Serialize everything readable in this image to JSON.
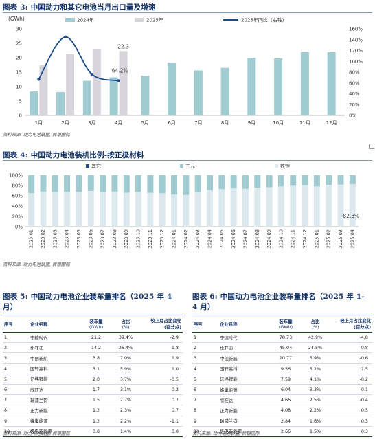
{
  "figure3": {
    "title": "图表 3: 中国动力和其它电池当月出口量及增速",
    "source": "资料来源: 动力电池联盟, 民银国际",
    "chart_data": {
      "type": "bar",
      "ylabel": "(GWh)",
      "ylim": [
        0,
        30
      ],
      "y2lim": [
        0,
        160
      ],
      "yticks": [
        "0",
        "5",
        "10",
        "15",
        "20",
        "25",
        "30"
      ],
      "y2ticks": [
        "0%",
        "20%",
        "40%",
        "60%",
        "80%",
        "100%",
        "120%",
        "140%",
        "160%"
      ],
      "categories": [
        "1月",
        "2月",
        "3月",
        "4月",
        "5月",
        "6月",
        "7月",
        "8月",
        "9月",
        "10月",
        "11月",
        "12月"
      ],
      "series": [
        {
          "name": "2024年",
          "color": "#9fcbd1",
          "values": [
            8.3,
            8.1,
            12.0,
            13.2,
            13.8,
            18.3,
            15.6,
            16.5,
            20.0,
            19.8,
            21.9,
            21.9
          ]
        },
        {
          "name": "2025年",
          "color": "#d7d4dc",
          "values": [
            17.4,
            21.2,
            22.9,
            22.3,
            null,
            null,
            null,
            null,
            null,
            null,
            null,
            null
          ]
        },
        {
          "name": "2025年同比（右轴）",
          "color": "#1c4c87",
          "axis": "right",
          "values": [
            67,
            145,
            76,
            64.2,
            null,
            null,
            null,
            null,
            null,
            null,
            null,
            null
          ]
        }
      ],
      "annotations": [
        "22.3",
        "64.2%"
      ]
    }
  },
  "figure4": {
    "title": "图表 4: 中国动力电池装机比例-按正极材料",
    "source": "资料来源: 动力电池联盟, 民银国际",
    "chart_data": {
      "type": "bar",
      "stacked": true,
      "yticks": [
        "0%",
        "20%",
        "40%",
        "60%",
        "80%",
        "100%"
      ],
      "categories": [
        "2023.01",
        "2023.02",
        "2023.03",
        "2023.04",
        "2023.05",
        "2023.06",
        "2023.07",
        "2023.08",
        "2023.09",
        "2023.10",
        "2023.11",
        "2023.12",
        "2024.01",
        "2024.02",
        "2024.03",
        "2024.04",
        "2024.05",
        "2024.06",
        "2024.07",
        "2024.08",
        "2024.09",
        "2024.10",
        "2024.11",
        "2024.12",
        "2025.01",
        "2025.02",
        "2025.03",
        "2025.04"
      ],
      "series": [
        {
          "name": "铁锂",
          "color": "#dbe9ee",
          "values": [
            65.4,
            68.2,
            67.1,
            67.6,
            67.8,
            69.4,
            66.8,
            68.3,
            65.9,
            67.7,
            65.7,
            64.9,
            62.3,
            61.6,
            66.8,
            71.0,
            73.1,
            74.3,
            73.7,
            75.9,
            76.7,
            78.2,
            79.6,
            80.5,
            78.2,
            81.0,
            81.7,
            82.8
          ]
        },
        {
          "name": "三元",
          "color": "#9fcbd1",
          "values": [
            34.6,
            31.8,
            32.9,
            32.4,
            32.2,
            30.6,
            33.2,
            31.7,
            34.1,
            32.3,
            34.3,
            35.1,
            37.7,
            38.4,
            33.2,
            29.0,
            26.9,
            25.7,
            26.3,
            24.1,
            23.3,
            21.8,
            20.4,
            19.5,
            21.8,
            19.0,
            18.3,
            17.2
          ]
        },
        {
          "name": "其它",
          "color": "#1c4c87",
          "values": [
            0.1,
            0.1,
            0.1,
            0.1,
            0.1,
            0.1,
            0.1,
            0.1,
            0.1,
            0.1,
            0.1,
            0.1,
            0.1,
            0.1,
            0.1,
            0.1,
            0.1,
            0.1,
            0.1,
            0.1,
            0.1,
            0.1,
            0.1,
            0.1,
            0.1,
            0.1,
            0.1,
            0.1
          ]
        }
      ],
      "annotations": [
        "82.8%"
      ]
    }
  },
  "figure5": {
    "title": "图表 5: 中国动力电池企业装车量排名（2025 年 4 月）",
    "title_line1": "图表 5: 中国动力电池企业装车量排名（2025 年 4",
    "title_line2": "月）",
    "source": "资料来源: 动力电池联盟, 民银国际",
    "headers": [
      "序号",
      "企业名称",
      "装车量",
      "(GWh)",
      "占比",
      "(%)",
      "较上月占比变化",
      "(百分点)"
    ],
    "rows": [
      [
        "1",
        "宁德时代",
        "21.2",
        "39.4%",
        "-2.9"
      ],
      [
        "2",
        "比亚迪",
        "14.2",
        "26.4%",
        "1.8"
      ],
      [
        "3",
        "中创新航",
        "3.8",
        "7.0%",
        "1.9"
      ],
      [
        "4",
        "国轩高科",
        "3.1",
        "5.9%",
        "1.0"
      ],
      [
        "5",
        "亿纬锂能",
        "2.0",
        "3.7%",
        "-0.5"
      ],
      [
        "6",
        "欣旺达",
        "1.7",
        "3.1%",
        "0.2"
      ],
      [
        "7",
        "瑞浦兰钧",
        "1.5",
        "2.7%",
        "0.7"
      ],
      [
        "8",
        "正力新能",
        "1.2",
        "2.3%",
        "0.7"
      ],
      [
        "9",
        "蜂巢能源",
        "1.2",
        "2.2%",
        "-1.1"
      ],
      [
        "10",
        "极电新能源",
        "0.8",
        "1.4%",
        "0.0"
      ]
    ]
  },
  "figure6": {
    "title": "图表 6: 中国动力电池企业装车量排名（2025 年 1-4 月）",
    "title_line1": "图表 6: 中国动力电池企业装车量排名（2025 年 1-",
    "title_line2": "4 月）",
    "source": "资料来源: 动力电池联盟, 民银国际",
    "headers": [
      "序号",
      "企业名称",
      "装车量",
      "(GWh)",
      "占比",
      "(%)",
      "较上月占比变化",
      "(百分点)"
    ],
    "rows": [
      [
        "1",
        "宁德时代",
        "78.73",
        "42.9%",
        "-4.8"
      ],
      [
        "2",
        "比亚迪",
        "45.04",
        "24.5%",
        "0.8"
      ],
      [
        "3",
        "中创新航",
        "10.77",
        "5.9%",
        "-0.6"
      ],
      [
        "4",
        "国轩高科",
        "9.56",
        "5.2%",
        "1.5"
      ],
      [
        "5",
        "亿纬锂能",
        "7.59",
        "4.1%",
        "-0.2"
      ],
      [
        "6",
        "蜂巢能源",
        "6.04",
        "3.3%",
        "-0.1"
      ],
      [
        "7",
        "欣旺达",
        "4.66",
        "2.5%",
        "-0.4"
      ],
      [
        "8",
        "正力新能",
        "4.08",
        "2.2%",
        "0.5"
      ],
      [
        "9",
        "瑞浦兰钧",
        "2.84",
        "1.6%",
        "0.3"
      ],
      [
        "10",
        "极电新能源",
        "2.66",
        "1.5%",
        "0.3"
      ]
    ]
  }
}
